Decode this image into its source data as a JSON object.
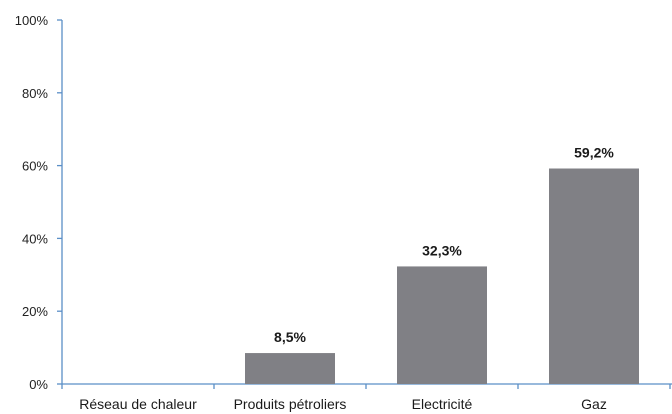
{
  "chart_data": {
    "type": "bar",
    "title": "",
    "xlabel": "",
    "ylabel": "",
    "categories": [
      "Réseau de chaleur",
      "Produits pétroliers",
      "Electricité",
      "Gaz"
    ],
    "values": [
      0,
      8.5,
      32.3,
      59.2
    ],
    "data_labels": [
      "",
      "8,5%",
      "32,3%",
      "59,2%"
    ],
    "ylim": [
      0,
      100
    ],
    "y_ticks": [
      0,
      20,
      40,
      60,
      80,
      100
    ],
    "y_tick_labels": [
      "0%",
      "20%",
      "40%",
      "60%",
      "80%",
      "100%"
    ],
    "grid": false,
    "legend": "none",
    "bar_color": "#808085",
    "axis_color": "#5b8fc7"
  }
}
